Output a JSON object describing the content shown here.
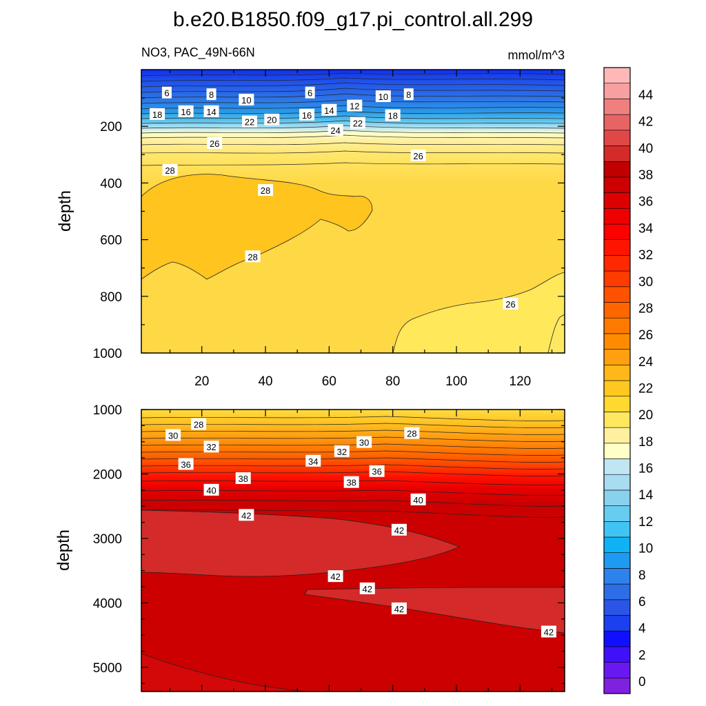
{
  "chart_data": {
    "type": "heatmap",
    "title": "b.e20.B1850.f09_g17.pi_control.all.299",
    "variable_label": "NO3, PAC_49N-66N",
    "units_label": "mmol/m^3",
    "colorbar": {
      "levels": [
        0,
        2,
        4,
        6,
        8,
        10,
        12,
        14,
        16,
        18,
        20,
        22,
        24,
        26,
        28,
        30,
        32,
        34,
        36,
        38,
        40,
        42,
        44
      ],
      "tick_labels": [
        "0",
        "2",
        "4",
        "6",
        "8",
        "10",
        "12",
        "14",
        "16",
        "18",
        "20",
        "22",
        "24",
        "26",
        "28",
        "30",
        "32",
        "34",
        "36",
        "38",
        "40",
        "42",
        "44"
      ],
      "colors": [
        "#8020e0",
        "#6a18f0",
        "#4010f8",
        "#1010ff",
        "#1a40f0",
        "#2a55e6",
        "#2d6ee8",
        "#2e82ec",
        "#1e9af2",
        "#10b2f6",
        "#40c4f4",
        "#68ccf0",
        "#88d2ee",
        "#a8dcf0",
        "#c0e6f4",
        "#ffffc8",
        "#fff0a0",
        "#ffe860",
        "#ffd830",
        "#ffc820",
        "#ffb818",
        "#ffa010",
        "#ff8c00",
        "#ff7a00",
        "#ff6600",
        "#ff5200",
        "#ff3c00",
        "#ff2800",
        "#ff1400",
        "#ff0000",
        "#ee0000",
        "#dd0000",
        "#cc0000",
        "#c00000",
        "#d42a2a",
        "#e04848",
        "#e86464",
        "#f08080",
        "#f8a0a0",
        "#ffb8b8"
      ]
    },
    "panels": [
      {
        "name": "upper",
        "x_range": [
          1,
          134
        ],
        "y_range": [
          0,
          1000
        ],
        "y_reversed": true,
        "x_ticks": [
          20,
          40,
          60,
          80,
          100,
          120
        ],
        "x_tick_labels": [
          "20",
          "40",
          "60",
          "80",
          "100",
          "120"
        ],
        "y_ticks": [
          200,
          400,
          600,
          800,
          1000
        ],
        "y_tick_labels": [
          "200",
          "400",
          "600",
          "800",
          "1000"
        ],
        "ylabel": "depth",
        "contour_labels": [
          {
            "text": "6",
            "x": 9,
            "y": 82
          },
          {
            "text": "8",
            "x": 23,
            "y": 88
          },
          {
            "text": "10",
            "x": 34,
            "y": 107
          },
          {
            "text": "6",
            "x": 54,
            "y": 82
          },
          {
            "text": "10",
            "x": 77,
            "y": 95
          },
          {
            "text": "8",
            "x": 85,
            "y": 88
          },
          {
            "text": "18",
            "x": 6,
            "y": 158
          },
          {
            "text": "16",
            "x": 15,
            "y": 148
          },
          {
            "text": "14",
            "x": 23,
            "y": 148
          },
          {
            "text": "22",
            "x": 35,
            "y": 184
          },
          {
            "text": "20",
            "x": 42,
            "y": 177
          },
          {
            "text": "16",
            "x": 53,
            "y": 160
          },
          {
            "text": "14",
            "x": 60,
            "y": 143
          },
          {
            "text": "12",
            "x": 68,
            "y": 128
          },
          {
            "text": "18",
            "x": 80,
            "y": 162
          },
          {
            "text": "24",
            "x": 62,
            "y": 214
          },
          {
            "text": "22",
            "x": 69,
            "y": 189
          },
          {
            "text": "26",
            "x": 24,
            "y": 260
          },
          {
            "text": "26",
            "x": 88,
            "y": 304
          },
          {
            "text": "28",
            "x": 10,
            "y": 355
          },
          {
            "text": "28",
            "x": 40,
            "y": 426
          },
          {
            "text": "28",
            "x": 36,
            "y": 660
          },
          {
            "text": "26",
            "x": 117,
            "y": 827
          }
        ]
      },
      {
        "name": "lower",
        "x_range": [
          1,
          134
        ],
        "y_range": [
          1000,
          5375
        ],
        "y_reversed": true,
        "x_ticks": [
          20,
          40,
          60,
          80,
          100,
          120
        ],
        "x_tick_labels": [
          "",
          "",
          "",
          "",
          "",
          ""
        ],
        "y_ticks": [
          1000,
          2000,
          3000,
          4000,
          5000
        ],
        "y_tick_labels": [
          "1000",
          "2000",
          "3000",
          "4000",
          "5000"
        ],
        "ylabel": "depth",
        "contour_labels": [
          {
            "text": "28",
            "x": 19,
            "y": 1230
          },
          {
            "text": "30",
            "x": 11,
            "y": 1400
          },
          {
            "text": "32",
            "x": 23,
            "y": 1580
          },
          {
            "text": "36",
            "x": 15,
            "y": 1850
          },
          {
            "text": "38",
            "x": 33,
            "y": 2070
          },
          {
            "text": "40",
            "x": 23,
            "y": 2250
          },
          {
            "text": "42",
            "x": 34,
            "y": 2640
          },
          {
            "text": "34",
            "x": 55,
            "y": 1800
          },
          {
            "text": "32",
            "x": 64,
            "y": 1650
          },
          {
            "text": "30",
            "x": 71,
            "y": 1510
          },
          {
            "text": "28",
            "x": 86,
            "y": 1370
          },
          {
            "text": "36",
            "x": 75,
            "y": 1960
          },
          {
            "text": "38",
            "x": 67,
            "y": 2130
          },
          {
            "text": "40",
            "x": 88,
            "y": 2400
          },
          {
            "text": "42",
            "x": 82,
            "y": 2870
          },
          {
            "text": "42",
            "x": 62,
            "y": 3590
          },
          {
            "text": "42",
            "x": 72,
            "y": 3780
          },
          {
            "text": "42",
            "x": 82,
            "y": 4090
          },
          {
            "text": "42",
            "x": 129,
            "y": 4450
          }
        ]
      }
    ]
  }
}
